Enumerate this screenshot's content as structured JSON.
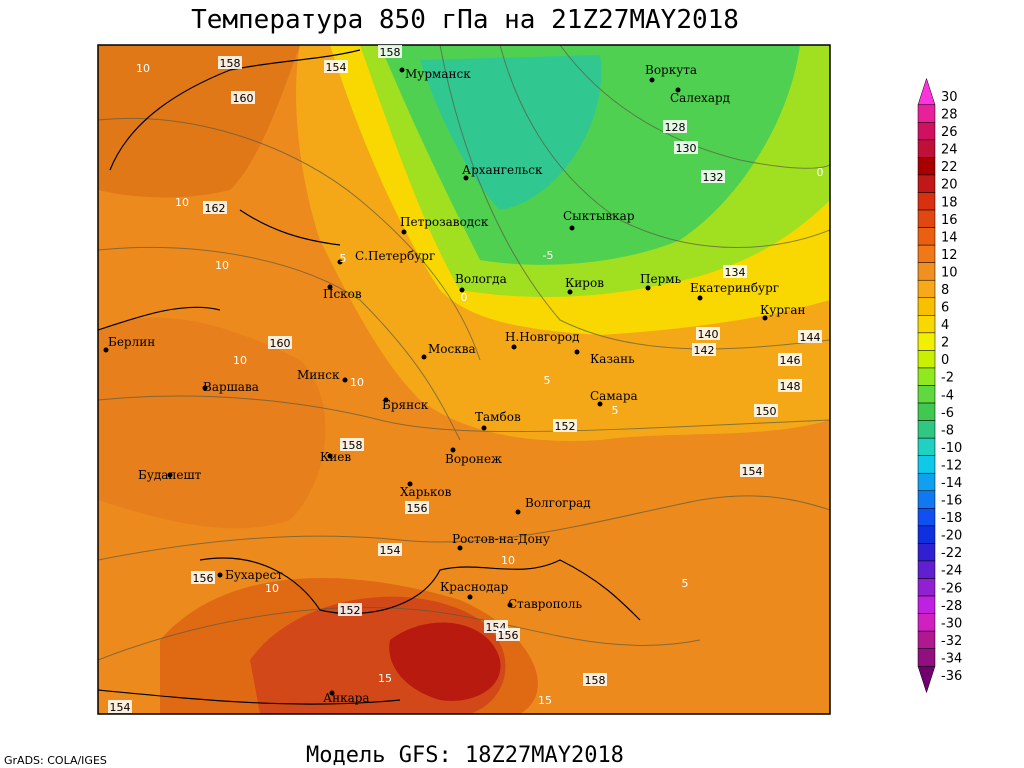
{
  "header": {
    "title": "Температура 850 гПа на 21Z27MAY2018"
  },
  "footer": {
    "model": "Модель GFS: 18Z27MAY2018",
    "credit": "GrADS: COLA/IGES"
  },
  "colorbar": {
    "labels": [
      30,
      28,
      26,
      24,
      22,
      20,
      18,
      16,
      14,
      12,
      10,
      8,
      6,
      4,
      2,
      0,
      -2,
      -4,
      -6,
      -8,
      -10,
      -12,
      -14,
      -16,
      -18,
      -20,
      -22,
      -24,
      -26,
      -28,
      -30,
      -32,
      -34,
      -36
    ],
    "colors": [
      "#ff33dd",
      "#e8209a",
      "#d01060",
      "#c0103a",
      "#a80000",
      "#c01818",
      "#d83010",
      "#e04810",
      "#e86010",
      "#f07818",
      "#f09020",
      "#f8a818",
      "#f8c000",
      "#f8d800",
      "#f0f000",
      "#c8f000",
      "#90e820",
      "#60d840",
      "#40c850",
      "#30c880",
      "#20d0c0",
      "#10c8e8",
      "#10a0f0",
      "#1078f0",
      "#1050f0",
      "#1030e0",
      "#3020d0",
      "#6020d0",
      "#9020d0",
      "#c020e0",
      "#d020c0",
      "#b01890",
      "#901080",
      "#700070"
    ]
  },
  "map": {
    "cities": [
      "Мурманск",
      "Воркута",
      "Салехард",
      "Архангельск",
      "Петрозаводск",
      "Сыктывкар",
      "С.Петербург",
      "Вологда",
      "Киров",
      "Пермь",
      "Екатеринбург",
      "Курган",
      "Псков",
      "Берлин",
      "Москва",
      "Н.Новгород",
      "Казань",
      "Минск",
      "Варшава",
      "Самара",
      "Брянск",
      "Тамбов",
      "Киев",
      "Воронеж",
      "Будапешт",
      "Харьков",
      "Волгоград",
      "Ростов-на-Дону",
      "Бухарест",
      "Краснодар",
      "Ставрополь",
      "Анкара"
    ],
    "height_labels": [
      158,
      158,
      154,
      160,
      128,
      130,
      132,
      162,
      134,
      140,
      142,
      144,
      146,
      148,
      150,
      160,
      152,
      158,
      154,
      156,
      154,
      156,
      152,
      154,
      156,
      158,
      154
    ],
    "temperature_labels": [
      10,
      10,
      10,
      5,
      0,
      -5,
      10,
      10,
      5,
      5,
      10,
      5,
      10,
      15,
      15,
      0
    ]
  }
}
